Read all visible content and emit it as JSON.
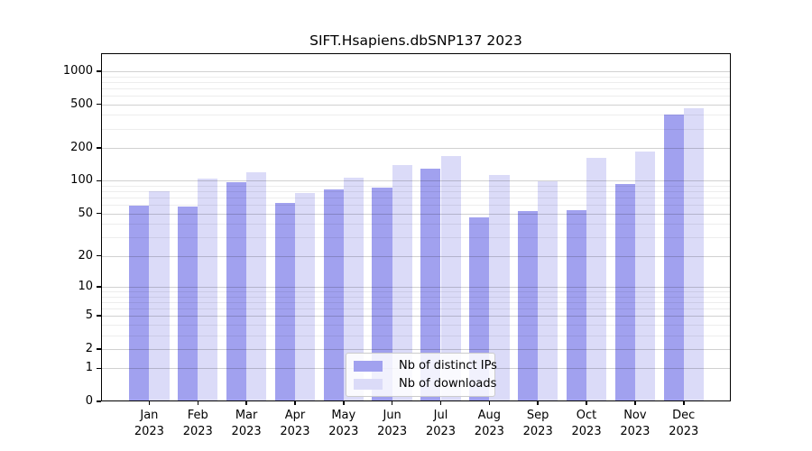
{
  "title": "SIFT.Hsapiens.dbSNP137 2023",
  "chart_data": {
    "type": "bar",
    "title": "SIFT.Hsapiens.dbSNP137 2023",
    "xlabel": "",
    "ylabel": "",
    "year": "2023",
    "categories": [
      {
        "month": "Jan",
        "year": "2023"
      },
      {
        "month": "Feb",
        "year": "2023"
      },
      {
        "month": "Mar",
        "year": "2023"
      },
      {
        "month": "Apr",
        "year": "2023"
      },
      {
        "month": "May",
        "year": "2023"
      },
      {
        "month": "Jun",
        "year": "2023"
      },
      {
        "month": "Jul",
        "year": "2023"
      },
      {
        "month": "Aug",
        "year": "2023"
      },
      {
        "month": "Sep",
        "year": "2023"
      },
      {
        "month": "Oct",
        "year": "2023"
      },
      {
        "month": "Nov",
        "year": "2023"
      },
      {
        "month": "Dec",
        "year": "2023"
      }
    ],
    "series": [
      {
        "name": "Nb of distinct IPs",
        "color": "#a1a1ef",
        "values": [
          57,
          56,
          94,
          60,
          81,
          83,
          125,
          44,
          51,
          52,
          90,
          387
        ]
      },
      {
        "name": "Nb of downloads",
        "color": "#dbdbf8",
        "values": [
          77,
          100,
          115,
          74,
          102,
          134,
          162,
          109,
          95,
          156,
          177,
          446
        ]
      }
    ],
    "y_scale": "log1p",
    "yticks": [
      0,
      1,
      2,
      5,
      10,
      20,
      50,
      100,
      200,
      500,
      1000
    ],
    "yticks_minor": [
      3,
      4,
      6,
      7,
      8,
      9,
      30,
      40,
      60,
      70,
      80,
      90,
      300,
      400,
      600,
      700,
      800,
      900
    ],
    "ylim": [
      0,
      1420
    ],
    "grid": "major+minor, horizontal, drawn over bars",
    "legend_position": "lower center"
  }
}
